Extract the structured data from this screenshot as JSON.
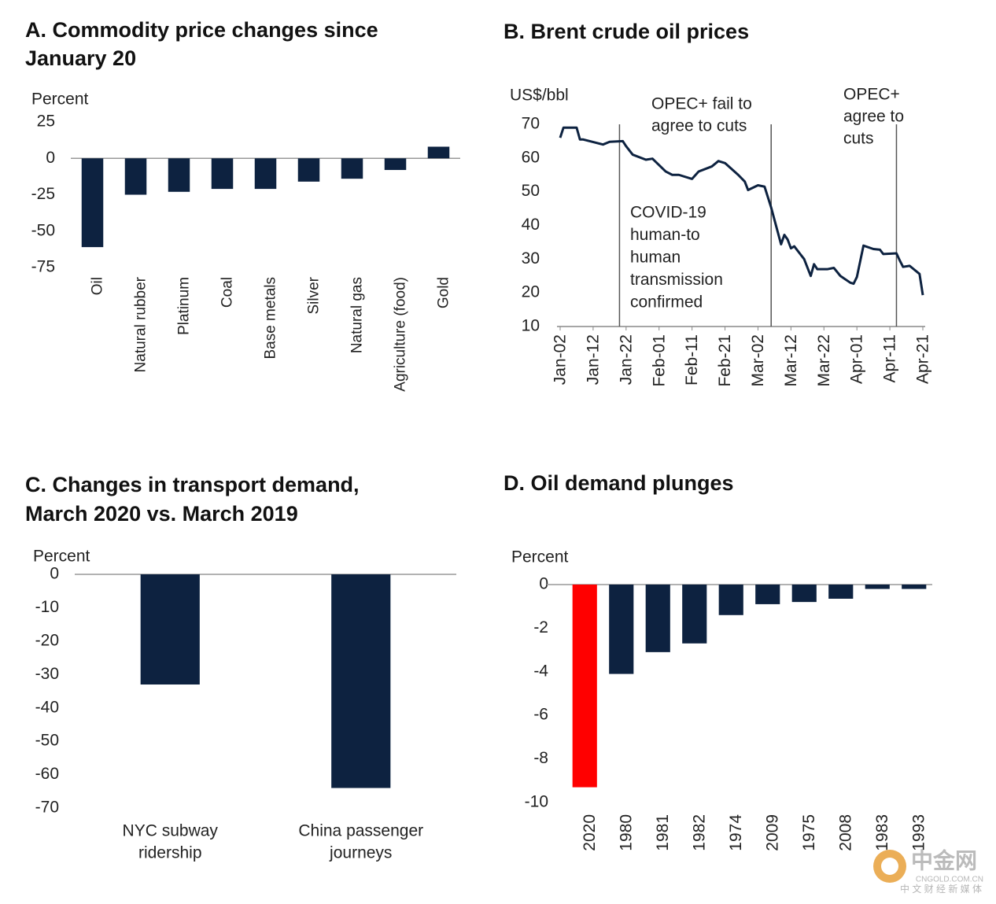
{
  "chart_data": [
    {
      "type": "bar",
      "title": [
        "A. Commodity price changes since",
        "January 20"
      ],
      "y_label": "Percent",
      "categories": [
        "Oil",
        "Natural rubber",
        "Platinum",
        "Coal",
        "Base metals",
        "Silver",
        "Natural gas",
        "Agriculture (food)",
        "Gold"
      ],
      "values": [
        -61,
        -25,
        -23,
        -21,
        -21,
        -16,
        -14,
        -8,
        8
      ],
      "colors": [
        "#0d2240",
        "#0d2240",
        "#0d2240",
        "#0d2240",
        "#0d2240",
        "#0d2240",
        "#0d2240",
        "#0d2240",
        "#0d2240"
      ],
      "ylim": [
        -75,
        25
      ],
      "yticks": [
        25,
        0,
        -25,
        -50,
        -75
      ]
    },
    {
      "type": "line",
      "title": [
        "B. Brent crude oil prices"
      ],
      "y_label": "US$/bbl",
      "x": [
        "Jan-02",
        "Jan-03",
        "Jan-06",
        "Jan-07",
        "Jan-08",
        "Jan-09",
        "Jan-13",
        "Jan-15",
        "Jan-17",
        "Jan-21",
        "Jan-22",
        "Jan-24",
        "Jan-28",
        "Jan-30",
        "Feb-03",
        "Feb-05",
        "Feb-07",
        "Feb-11",
        "Feb-13",
        "Feb-17",
        "Feb-19",
        "Feb-21",
        "Feb-25",
        "Feb-27",
        "Feb-28",
        "Mar-02",
        "Mar-04",
        "Mar-06",
        "Mar-09",
        "Mar-10",
        "Mar-11",
        "Mar-12",
        "Mar-13",
        "Mar-16",
        "Mar-18",
        "Mar-19",
        "Mar-20",
        "Mar-23",
        "Mar-25",
        "Mar-27",
        "Mar-30",
        "Mar-31",
        "Apr-01",
        "Apr-03",
        "Apr-06",
        "Apr-08",
        "Apr-09",
        "Apr-13",
        "Apr-14",
        "Apr-15",
        "Apr-17",
        "Apr-20",
        "Apr-21"
      ],
      "series": [
        {
          "name": "Brent",
          "color": "#0d2240",
          "values": [
            66,
            69,
            69,
            69,
            65.5,
            65.5,
            64.5,
            64,
            64.8,
            65,
            63.5,
            61,
            59.5,
            59.8,
            56,
            55,
            55,
            53.8,
            56,
            57.5,
            59.1,
            58.5,
            55,
            53,
            50.5,
            51.9,
            51.5,
            45.3,
            34.4,
            37.2,
            35.8,
            33.2,
            33.8,
            30,
            25,
            28.5,
            27,
            27,
            27.4,
            25,
            23,
            22.7,
            24.7,
            34,
            33,
            32.8,
            31.5,
            31.7,
            29.6,
            27.7,
            28,
            25.6,
            19.3
          ]
        }
      ],
      "xlim": [
        "Jan-02",
        "Apr-21"
      ],
      "xticks": [
        "Jan-02",
        "Jan-12",
        "Jan-22",
        "Feb-01",
        "Feb-11",
        "Feb-21",
        "Mar-02",
        "Mar-12",
        "Mar-22",
        "Apr-01",
        "Apr-11",
        "Apr-21"
      ],
      "ylim": [
        10,
        70
      ],
      "yticks": [
        10,
        20,
        30,
        40,
        50,
        60,
        70
      ],
      "annotations": [
        {
          "x": "Jan-20",
          "text": [
            "COVID-19",
            "human-to",
            "human",
            "transmission",
            "confirmed"
          ]
        },
        {
          "x": "Mar-06",
          "text": [
            "OPEC+ fail to",
            "agree to cuts"
          ]
        },
        {
          "x": "Apr-13",
          "text": [
            "OPEC+",
            "agree to",
            "cuts"
          ]
        }
      ]
    },
    {
      "type": "bar",
      "title": [
        "C. Changes in transport demand,",
        "March 2020 vs. March 2019"
      ],
      "y_label": "Percent",
      "categories": [
        [
          "NYC subway",
          "ridership"
        ],
        [
          "China passenger",
          "journeys"
        ]
      ],
      "values": [
        -33,
        -64
      ],
      "colors": [
        "#0d2240",
        "#0d2240"
      ],
      "ylim": [
        -70,
        0
      ],
      "yticks": [
        0,
        -10,
        -20,
        -30,
        -40,
        -50,
        -60,
        -70
      ]
    },
    {
      "type": "bar",
      "title": [
        "D. Oil demand plunges"
      ],
      "y_label": "Percent",
      "categories": [
        "2020",
        "1980",
        "1981",
        "1982",
        "1974",
        "2009",
        "1975",
        "2008",
        "1983",
        "1993"
      ],
      "values": [
        -9.3,
        -4.1,
        -3.1,
        -2.7,
        -1.4,
        -0.9,
        -0.8,
        -0.65,
        -0.2,
        -0.2
      ],
      "colors": [
        "#ff0000",
        "#0d2240",
        "#0d2240",
        "#0d2240",
        "#0d2240",
        "#0d2240",
        "#0d2240",
        "#0d2240",
        "#0d2240",
        "#0d2240"
      ],
      "ylim": [
        -10,
        0
      ],
      "yticks": [
        0,
        -2,
        -4,
        -6,
        -8,
        -10
      ]
    }
  ],
  "watermark": {
    "name": "中金网",
    "site": "CNGOLD.COM.CN",
    "slogan": "中 文 财 经 新 媒 体"
  }
}
